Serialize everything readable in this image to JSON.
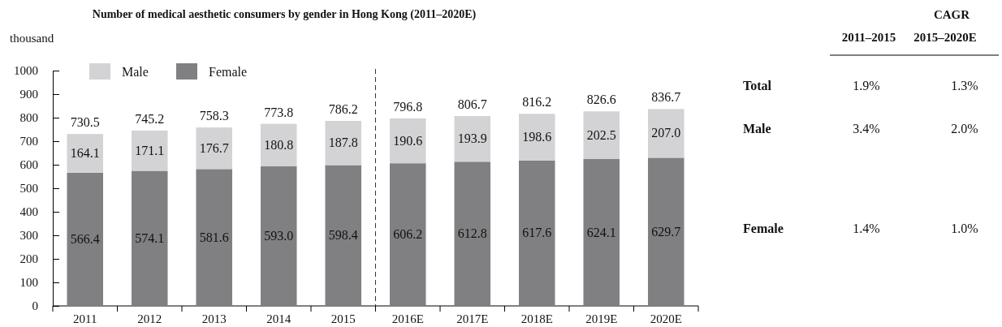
{
  "chart_data": [
    {
      "type": "bar",
      "title": "Number of medical aesthetic consumers by gender in Hong Kong (2011–2020E)",
      "ylabel": "thousand",
      "categories": [
        "2011",
        "2012",
        "2013",
        "2014",
        "2015",
        "2016E",
        "2017E",
        "2018E",
        "2019E",
        "2020E"
      ],
      "stacked": true,
      "series": [
        {
          "name": "Female",
          "color": "#808083",
          "values": [
            566.4,
            574.1,
            581.6,
            593.0,
            598.4,
            606.2,
            612.8,
            617.6,
            624.1,
            629.7
          ],
          "value_labels": [
            "566.4",
            "574.1",
            "581.6",
            "593.0",
            "598.4",
            "606.2",
            "612.8",
            "617.6",
            "624.1",
            "629.7"
          ]
        },
        {
          "name": "Male",
          "color": "#d3d3d5",
          "values": [
            164.1,
            171.1,
            176.7,
            180.8,
            187.8,
            190.6,
            193.9,
            198.6,
            202.5,
            207.0
          ],
          "value_labels": [
            "164.1",
            "171.1",
            "176.7",
            "180.8",
            "187.8",
            "190.6",
            "193.9",
            "198.6",
            "202.5",
            "207.0"
          ]
        }
      ],
      "totals": [
        "730.5",
        "745.2",
        "758.3",
        "773.8",
        "786.2",
        "796.8",
        "806.7",
        "816.2",
        "826.6",
        "836.7"
      ],
      "ylim": [
        0,
        1000
      ],
      "yticks": [
        0,
        100,
        200,
        300,
        400,
        500,
        600,
        700,
        800,
        900,
        1000
      ],
      "legend": "top left"
    },
    {
      "type": "other",
      "title": "CAGR",
      "categories": [
        "2011–2015",
        "2015–2020E"
      ],
      "y_categories": [
        "Total",
        "Male",
        "Female"
      ],
      "cell_labels": [
        [
          "1.9%",
          "1.3%"
        ],
        [
          "3.4%",
          "2.0%"
        ],
        [
          "1.4%",
          "1.0%"
        ]
      ]
    }
  ]
}
